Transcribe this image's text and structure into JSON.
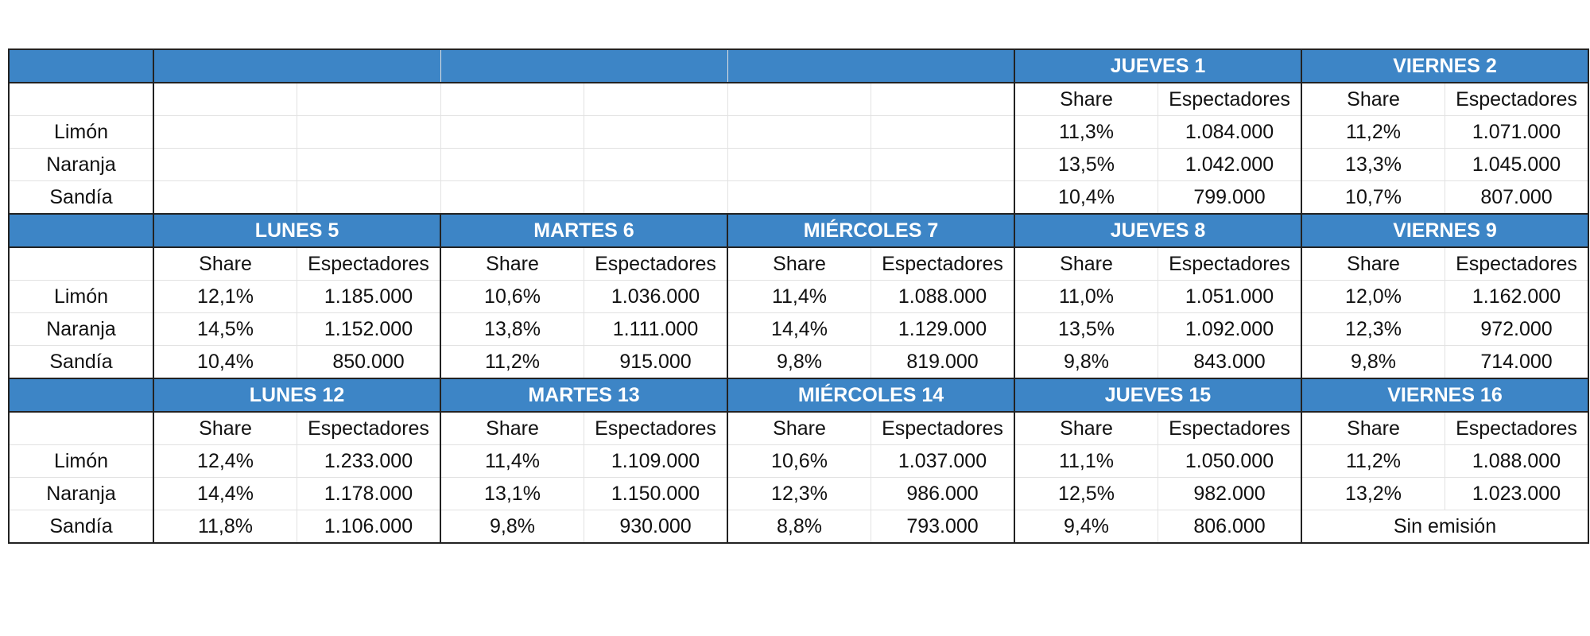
{
  "accent_color": "#3d85c6",
  "col_share": "Share",
  "col_espectadores": "Espectadores",
  "row_labels": [
    "Limón",
    "Naranja",
    "Sandía"
  ],
  "blocks": [
    {
      "days": [
        null,
        null,
        null,
        {
          "title": "JUEVES 1",
          "rows": [
            [
              "11,3%",
              "1.084.000"
            ],
            [
              "13,5%",
              "1.042.000"
            ],
            [
              "10,4%",
              "799.000"
            ]
          ]
        },
        {
          "title": "VIERNES 2",
          "rows": [
            [
              "11,2%",
              "1.071.000"
            ],
            [
              "13,3%",
              "1.045.000"
            ],
            [
              "10,7%",
              "807.000"
            ]
          ]
        }
      ]
    },
    {
      "days": [
        {
          "title": "LUNES 5",
          "rows": [
            [
              "12,1%",
              "1.185.000"
            ],
            [
              "14,5%",
              "1.152.000"
            ],
            [
              "10,4%",
              "850.000"
            ]
          ]
        },
        {
          "title": "MARTES 6",
          "rows": [
            [
              "10,6%",
              "1.036.000"
            ],
            [
              "13,8%",
              "1.111.000"
            ],
            [
              "11,2%",
              "915.000"
            ]
          ]
        },
        {
          "title": "MIÉRCOLES 7",
          "rows": [
            [
              "11,4%",
              "1.088.000"
            ],
            [
              "14,4%",
              "1.129.000"
            ],
            [
              "9,8%",
              "819.000"
            ]
          ]
        },
        {
          "title": "JUEVES 8",
          "rows": [
            [
              "11,0%",
              "1.051.000"
            ],
            [
              "13,5%",
              "1.092.000"
            ],
            [
              "9,8%",
              "843.000"
            ]
          ]
        },
        {
          "title": "VIERNES 9",
          "rows": [
            [
              "12,0%",
              "1.162.000"
            ],
            [
              "12,3%",
              "972.000"
            ],
            [
              "9,8%",
              "714.000"
            ]
          ]
        }
      ]
    },
    {
      "days": [
        {
          "title": "LUNES 12",
          "rows": [
            [
              "12,4%",
              "1.233.000"
            ],
            [
              "14,4%",
              "1.178.000"
            ],
            [
              "11,8%",
              "1.106.000"
            ]
          ]
        },
        {
          "title": "MARTES 13",
          "rows": [
            [
              "11,4%",
              "1.109.000"
            ],
            [
              "13,1%",
              "1.150.000"
            ],
            [
              "9,8%",
              "930.000"
            ]
          ]
        },
        {
          "title": "MIÉRCOLES 14",
          "rows": [
            [
              "10,6%",
              "1.037.000"
            ],
            [
              "12,3%",
              "986.000"
            ],
            [
              "8,8%",
              "793.000"
            ]
          ]
        },
        {
          "title": "JUEVES 15",
          "rows": [
            [
              "11,1%",
              "1.050.000"
            ],
            [
              "12,5%",
              "982.000"
            ],
            [
              "9,4%",
              "806.000"
            ]
          ]
        },
        {
          "title": "VIERNES 16",
          "rows": [
            [
              "11,2%",
              "1.088.000"
            ],
            [
              "13,2%",
              "1.023.000"
            ],
            "Sin emisión"
          ]
        }
      ]
    }
  ]
}
